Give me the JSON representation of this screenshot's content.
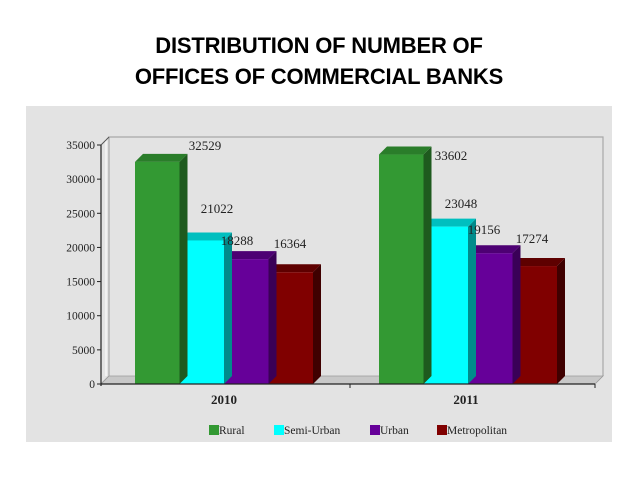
{
  "title": {
    "line1": "DISTRIBUTION OF NUMBER OF",
    "line2": "OFFICES OF COMMERCIAL BANKS"
  },
  "chart_data": {
    "type": "bar",
    "style": "3d-clustered-column",
    "title": "DISTRIBUTION OF NUMBER OF OFFICES OF COMMERCIAL BANKS",
    "xlabel": "",
    "ylabel": "",
    "categories": [
      "2010",
      "2011"
    ],
    "series": [
      {
        "name": "Rural",
        "color": "#339933",
        "values": [
          32529,
          33602
        ]
      },
      {
        "name": "Semi-Urban",
        "color": "#00ffff",
        "values": [
          21022,
          23048
        ]
      },
      {
        "name": "Urban",
        "color": "#660099",
        "values": [
          18288,
          19156
        ]
      },
      {
        "name": "Metropolitan",
        "color": "#800000",
        "values": [
          16364,
          17274
        ]
      }
    ],
    "yticks": [
      0,
      5000,
      10000,
      15000,
      20000,
      25000,
      30000,
      35000
    ],
    "ylim": [
      0,
      35000
    ],
    "grid": false,
    "data_labels": true,
    "legend_position": "bottom"
  },
  "legend": {
    "items": [
      {
        "label": "Rural",
        "color": "#339933"
      },
      {
        "label": "Semi-Urban",
        "color": "#00ffff"
      },
      {
        "label": "Urban",
        "color": "#660099"
      },
      {
        "label": "Metropolitan",
        "color": "#800000"
      }
    ]
  },
  "colors": {
    "panel_bg": "#e3e3e3",
    "rural_front": "#339933",
    "rural_side": "#1e5a1e",
    "rural_top": "#2a7d2a",
    "semi_front": "#00ffff",
    "semi_side": "#008b8b",
    "semi_top": "#00bfbf",
    "urban_front": "#660099",
    "urban_side": "#3a0057",
    "urban_top": "#4d0073",
    "metro_front": "#800000",
    "metro_side": "#3f0000",
    "metro_top": "#5e0000"
  }
}
